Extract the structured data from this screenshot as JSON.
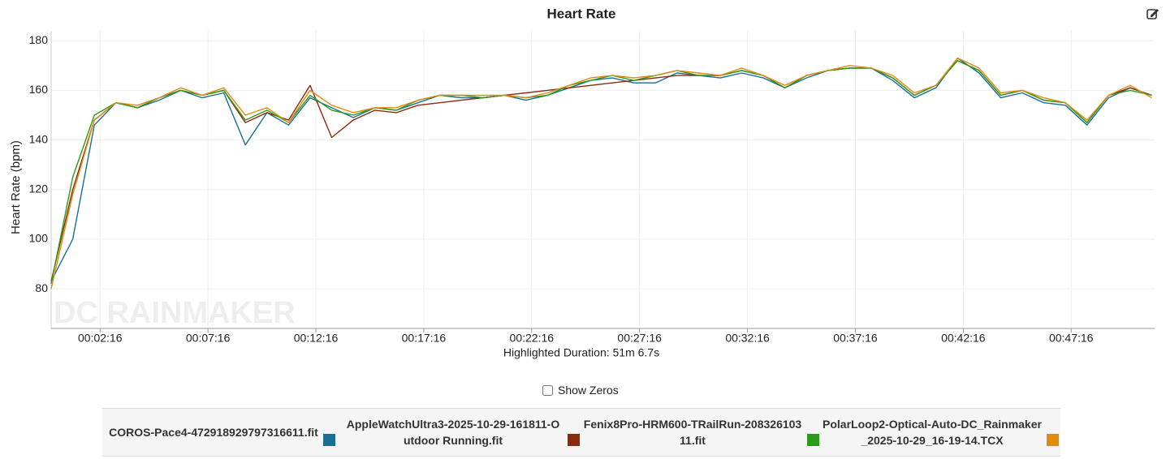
{
  "chart_data": {
    "type": "line",
    "title": "Heart Rate",
    "ylabel": "Heart Rate (bpm)",
    "xlabel": "Highlighted Duration: 51m 6.7s",
    "watermark": "DC RAINMAKER",
    "x": [
      0,
      60,
      120,
      180,
      240,
      300,
      360,
      420,
      480,
      540,
      600,
      660,
      720,
      780,
      840,
      900,
      960,
      1020,
      1080,
      1140,
      1200,
      1260,
      1320,
      1380,
      1440,
      1500,
      1560,
      1620,
      1680,
      1740,
      1800,
      1860,
      1920,
      1980,
      2040,
      2100,
      2160,
      2220,
      2280,
      2340,
      2400,
      2460,
      2520,
      2580,
      2640,
      2700,
      2760,
      2820,
      2880,
      2940,
      3000,
      3060
    ],
    "xlim": [
      0,
      3068
    ],
    "xticks": [
      {
        "value": 136,
        "label": "00:02:16"
      },
      {
        "value": 436,
        "label": "00:07:16"
      },
      {
        "value": 736,
        "label": "00:12:16"
      },
      {
        "value": 1036,
        "label": "00:17:16"
      },
      {
        "value": 1336,
        "label": "00:22:16"
      },
      {
        "value": 1636,
        "label": "00:27:16"
      },
      {
        "value": 1936,
        "label": "00:32:16"
      },
      {
        "value": 2236,
        "label": "00:37:16"
      },
      {
        "value": 2536,
        "label": "00:42:16"
      },
      {
        "value": 2836,
        "label": "00:47:16"
      }
    ],
    "ylim": [
      64,
      184
    ],
    "yticks": [
      80,
      100,
      120,
      140,
      160,
      180
    ],
    "grid": true,
    "series": [
      {
        "name": "COROS-Pace4-472918929797316611.fit",
        "color": "#1a6e94",
        "values": [
          83,
          100,
          146,
          155,
          153,
          156,
          160,
          157,
          159,
          138,
          151,
          146,
          157,
          153,
          149,
          153,
          152,
          155,
          158,
          157,
          157,
          158,
          156,
          158,
          161,
          164,
          165,
          163,
          163,
          167,
          166,
          165,
          167,
          165,
          161,
          165,
          168,
          169,
          169,
          164,
          157,
          161,
          173,
          167,
          157,
          159,
          155,
          154,
          146,
          157,
          161,
          158
        ]
      },
      {
        "name": "AppleWatchUltra3-2025-10-29-161811-Outdoor Running.fit",
        "color": "#8b2a0e",
        "values": [
          83,
          120,
          148,
          155,
          153,
          157,
          160,
          158,
          160,
          147,
          151,
          148,
          162,
          141,
          148,
          152,
          151,
          154,
          155,
          156,
          157,
          158,
          159,
          160,
          161,
          162,
          163,
          164,
          165,
          166,
          166,
          166,
          168,
          166,
          161,
          166,
          168,
          169,
          169,
          165,
          158,
          162,
          172,
          168,
          158,
          160,
          156,
          155,
          147,
          158,
          161,
          158
        ]
      },
      {
        "name": "Fenix8Pro-HRM600-TRailRun-20832610311.fit",
        "color": "#2e9a1a",
        "values": [
          82,
          125,
          150,
          155,
          153,
          157,
          160,
          158,
          160,
          148,
          152,
          147,
          158,
          152,
          150,
          153,
          152,
          156,
          158,
          158,
          157,
          158,
          157,
          158,
          162,
          164,
          166,
          164,
          166,
          168,
          166,
          166,
          168,
          166,
          161,
          166,
          168,
          169,
          169,
          165,
          158,
          162,
          172,
          168,
          158,
          160,
          156,
          155,
          147,
          158,
          160,
          158
        ]
      },
      {
        "name": "PolarLoop2-Optical-Auto-DC_Rainmaker_2025-10-29_16-19-14.TCX",
        "color": "#e08a10",
        "values": [
          80,
          118,
          148,
          155,
          154,
          157,
          161,
          158,
          161,
          150,
          153,
          147,
          160,
          154,
          151,
          153,
          153,
          156,
          158,
          158,
          158,
          158,
          157,
          159,
          162,
          165,
          166,
          165,
          166,
          168,
          167,
          166,
          169,
          166,
          162,
          166,
          168,
          170,
          169,
          166,
          159,
          162,
          173,
          169,
          159,
          160,
          157,
          155,
          148,
          158,
          162,
          157
        ]
      }
    ]
  },
  "controls": {
    "show_zeros": "Show Zeros"
  }
}
